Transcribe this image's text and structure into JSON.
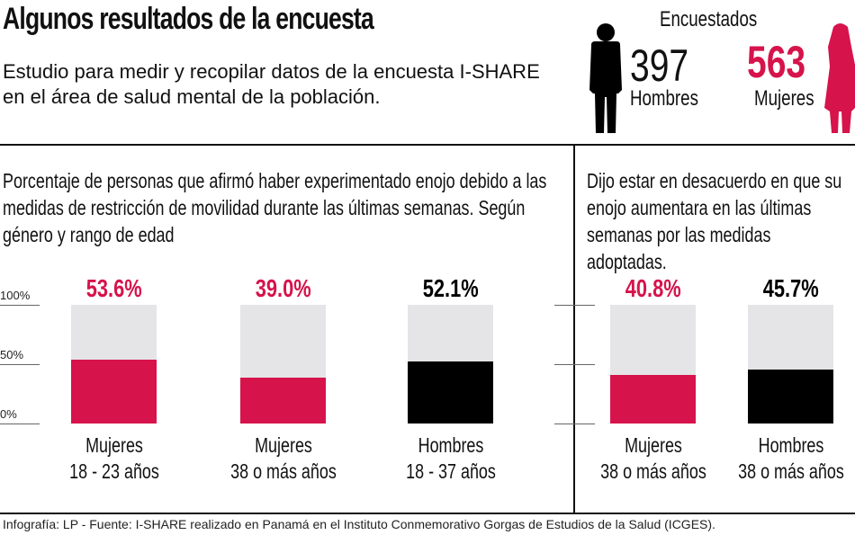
{
  "header": {
    "title": "Algunos resultados de la encuesta",
    "subtitle": "Estudio para medir y recopilar datos de la encuesta I-SHARE en el área de salud mental de la población."
  },
  "respondents": {
    "label": "Encuestados",
    "men": {
      "count": "397",
      "label": "Hombres",
      "icon": "man-silhouette-icon",
      "color": "#000000"
    },
    "women": {
      "count": "563",
      "label": "Mujeres",
      "icon": "woman-silhouette-icon",
      "color": "#d6134b"
    }
  },
  "colors": {
    "women": "#d6134b",
    "men": "#000000",
    "background_bar": "#e5e5e8"
  },
  "chart_data": [
    {
      "type": "bar",
      "title": "Porcentaje de personas que afirmó haber experimentado enojo debido a las medidas de restricción de movilidad durante las últimas semanas. Según género y rango de edad",
      "ylim": [
        0,
        100
      ],
      "yticks": [
        "100%",
        "50%",
        "0%"
      ],
      "categories": [
        {
          "line1": "Mujeres",
          "line2": "18 - 23 años"
        },
        {
          "line1": "Mujeres",
          "line2": "38 o más años"
        },
        {
          "line1": "Hombres",
          "line2": "18 - 37 años"
        }
      ],
      "values": [
        53.6,
        39.0,
        52.1
      ],
      "labels": [
        "53.6%",
        "39.0%",
        "52.1%"
      ],
      "colors": [
        "#d6134b",
        "#d6134b",
        "#000000"
      ]
    },
    {
      "type": "bar",
      "title": "Dijo estar en desacuerdo en que su enojo aumentara en las últimas semanas por las medidas adoptadas.",
      "ylim": [
        0,
        100
      ],
      "categories": [
        {
          "line1": "Mujeres",
          "line2": "38 o más años"
        },
        {
          "line1": "Hombres",
          "line2": "38 o más años"
        }
      ],
      "values": [
        40.8,
        45.7
      ],
      "labels": [
        "40.8%",
        "45.7%"
      ],
      "colors": [
        "#d6134b",
        "#000000"
      ]
    }
  ],
  "footer": "Infografía: LP - Fuente: I-SHARE realizado en Panamá en el Instituto Conmemorativo Gorgas de Estudios de la Salud (ICGES)."
}
